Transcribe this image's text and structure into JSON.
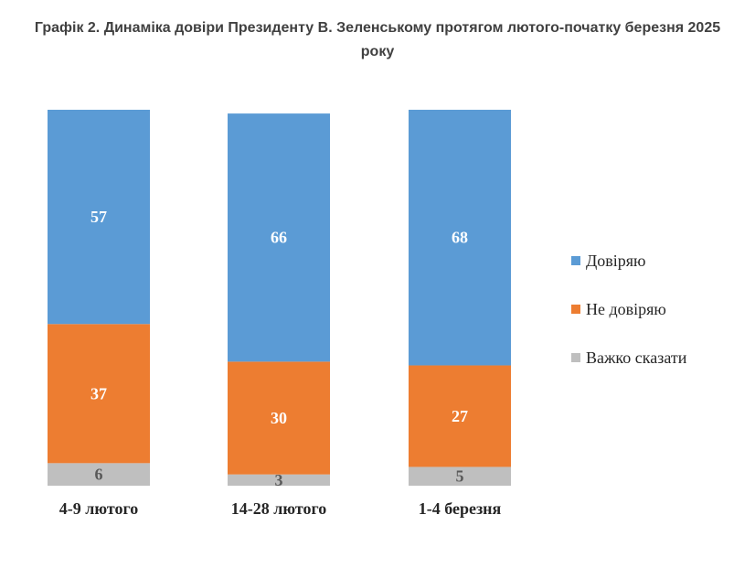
{
  "chart_data": {
    "type": "bar",
    "stacked": true,
    "title": "Графік 2. Динаміка довіри Президенту В. Зеленському протягом лютого-початку березня 2025 року",
    "categories": [
      "4-9 лютого",
      "14-28 лютого",
      "1-4 березня"
    ],
    "series": [
      {
        "name": "Довіряю",
        "values": [
          57,
          66,
          68
        ],
        "color": "#5B9BD5"
      },
      {
        "name": "Не довіряю",
        "values": [
          37,
          30,
          27
        ],
        "color": "#ED7D31"
      },
      {
        "name": "Важко сказати",
        "values": [
          6,
          3,
          5
        ],
        "color": "#BFBFBF"
      }
    ],
    "ylim": [
      0,
      100
    ],
    "legend_position": "right",
    "grid": false
  }
}
